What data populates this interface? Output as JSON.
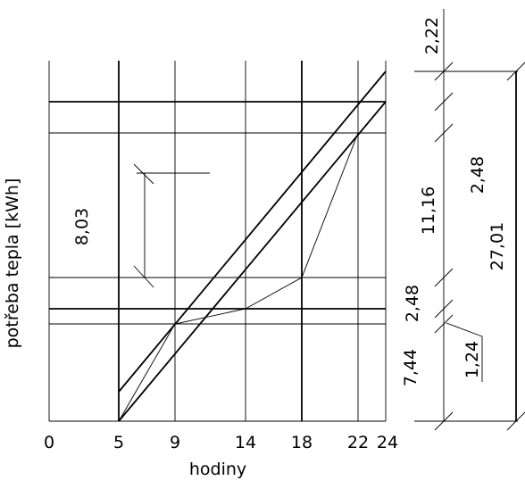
{
  "diagram": {
    "ylabel": "potřeba tepla [kWh]",
    "xlabel": "hodiny",
    "x_ticks": [
      "0",
      "5",
      "9",
      "14",
      "18",
      "22",
      "24"
    ],
    "inner_label": "8,03",
    "dims": {
      "d1": "2,22",
      "d2": "11,16",
      "d3": "2,48",
      "d4": "2,48",
      "d5": "27,01",
      "d6": "7,44",
      "d7": "1,24"
    }
  }
}
